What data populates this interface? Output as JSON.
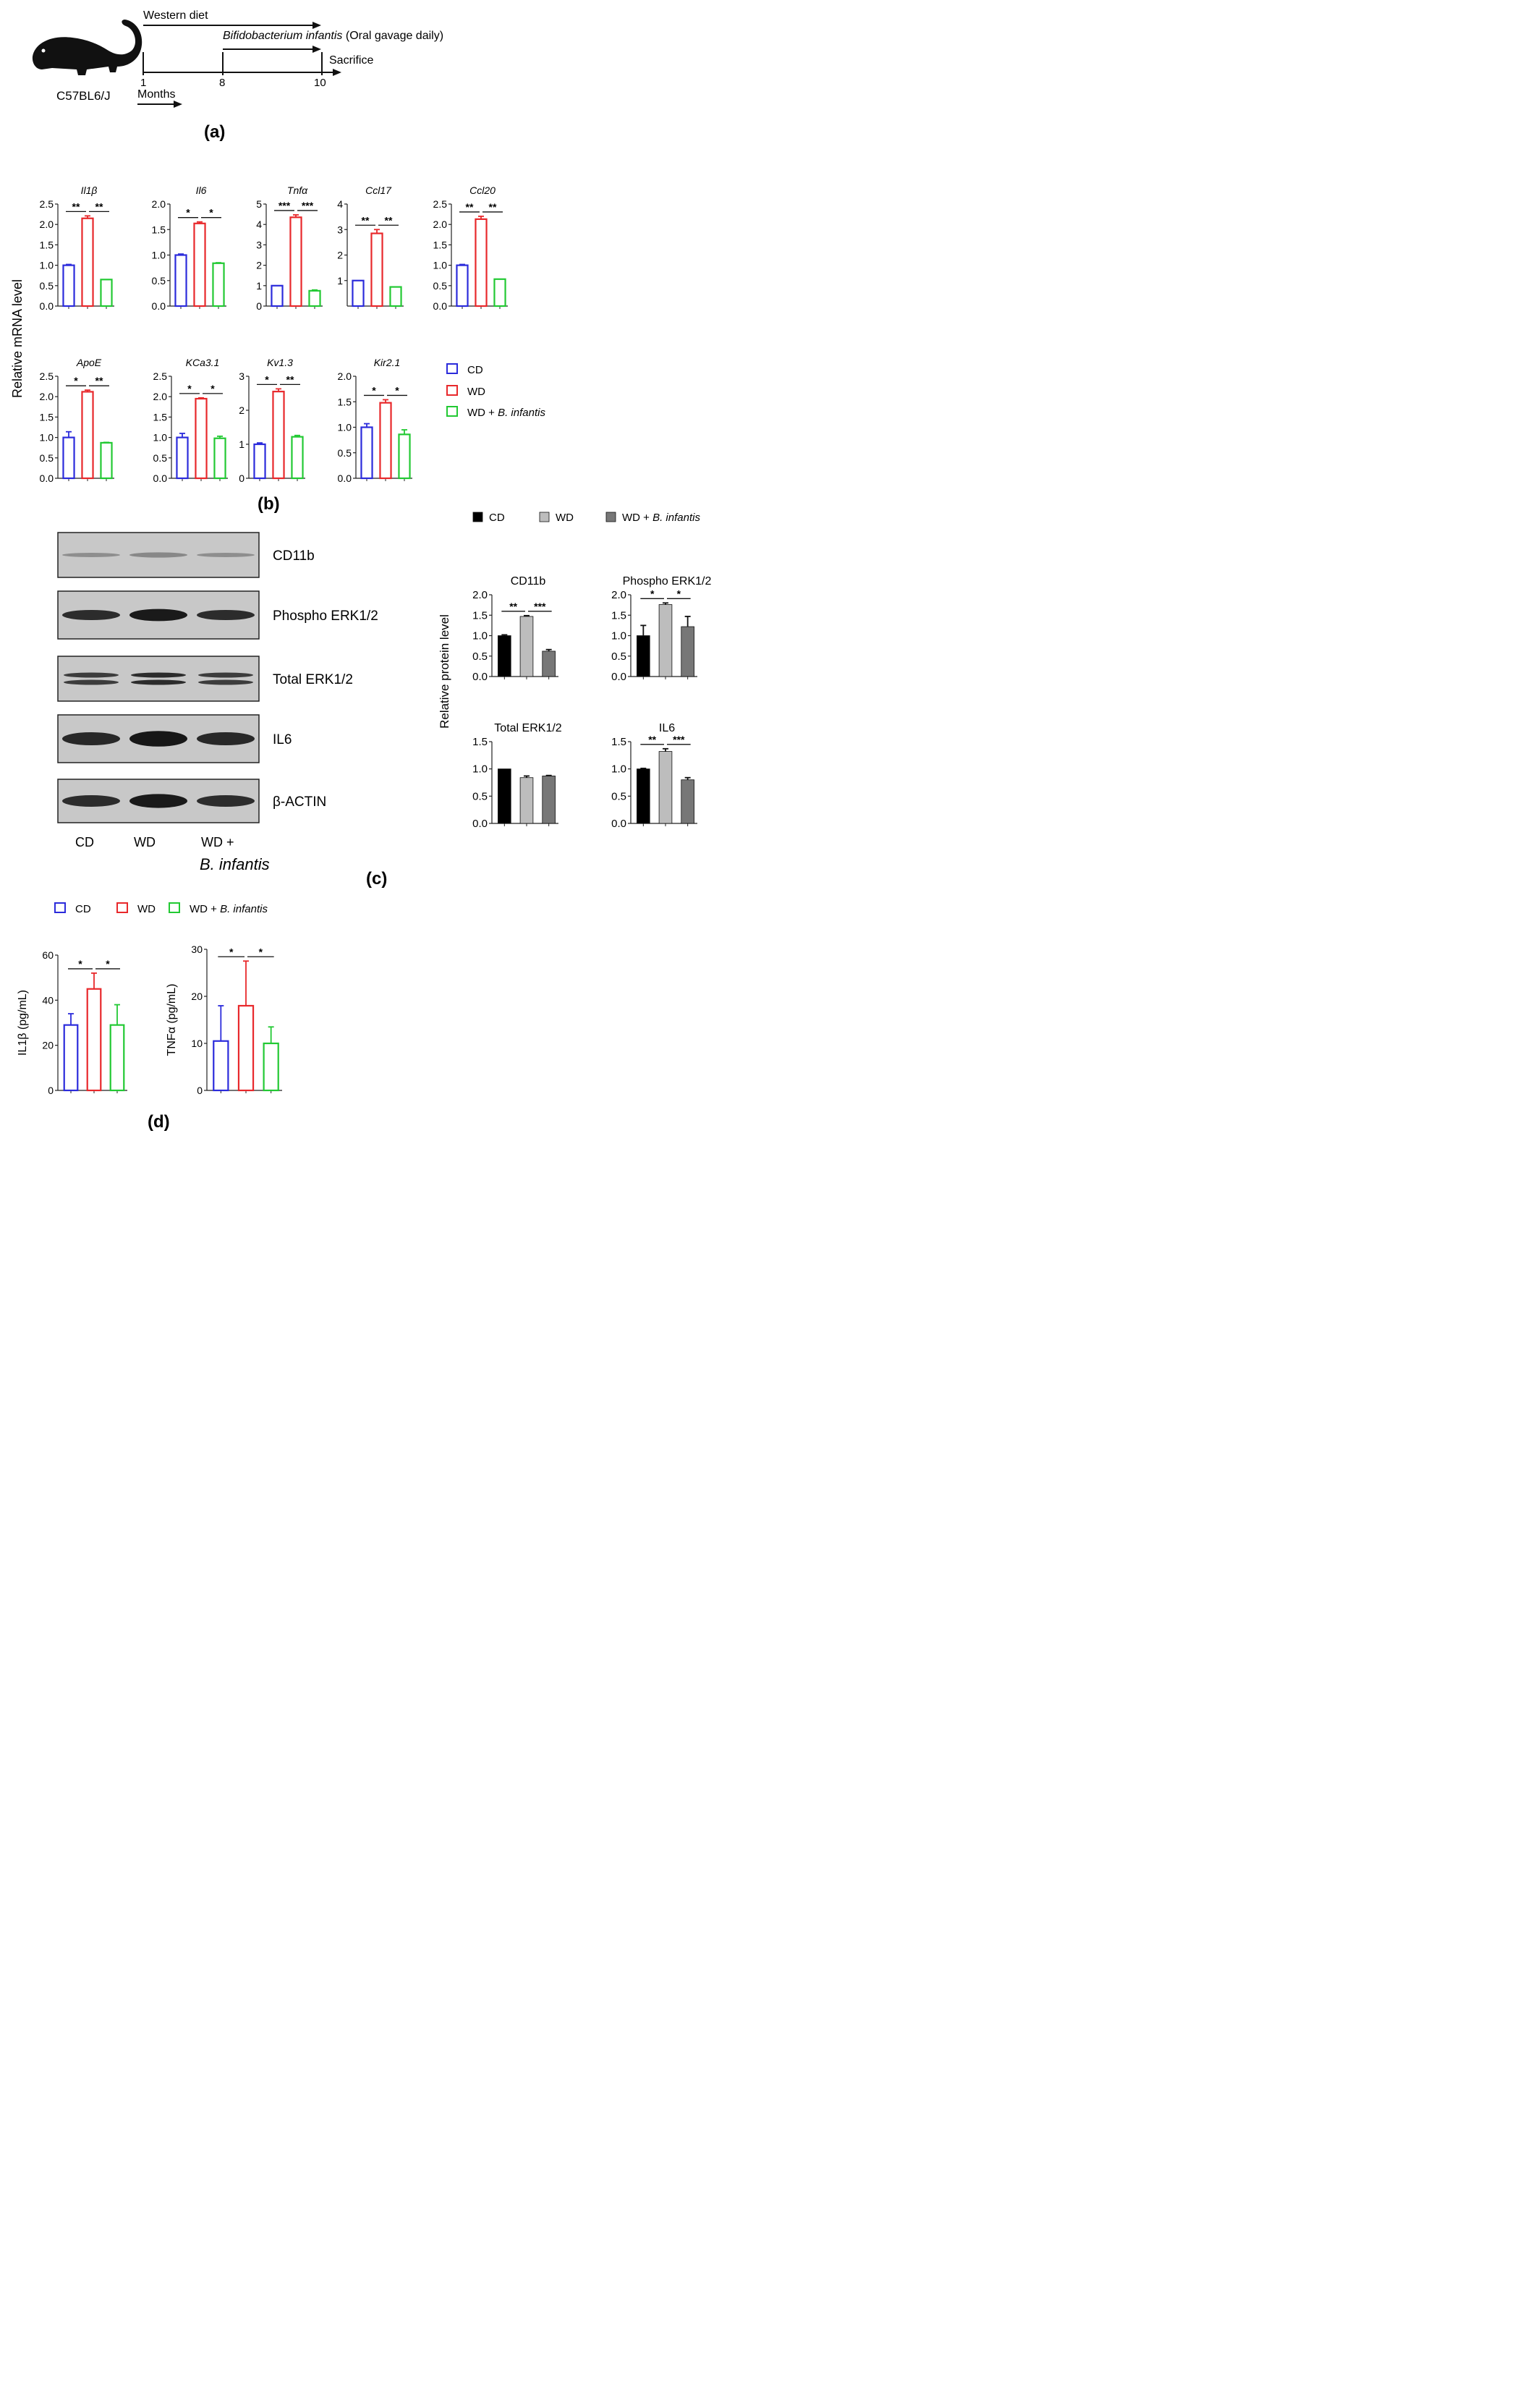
{
  "panel_labels": {
    "a": "(a)",
    "b": "(b)",
    "c": "(c)",
    "d": "(d)"
  },
  "colors": {
    "cd": "#2b2bdb",
    "wd": "#e8282b",
    "binf": "#22c933",
    "prot_cd": "#000000",
    "prot_wd": "#bdbdbd",
    "prot_binf": "#777777",
    "axis": "#222222",
    "blot_bg": "#c8c8c8",
    "band": "#111111"
  },
  "timeline": {
    "mouse_label": "C57BL6/J",
    "western_diet": "Western diet",
    "binf_name": "Bifidobacterium infantis",
    "binf_suffix": " (Oral gavage daily)",
    "sacrifice": "Sacrifice",
    "months": "Months",
    "ticks": [
      "1",
      "8",
      "10"
    ]
  },
  "mrna": {
    "ylabel": "Relative mRNA level",
    "legend": [
      {
        "label": "CD",
        "italic": ""
      },
      {
        "label": "WD",
        "italic": ""
      },
      {
        "label": "WD + ",
        "italic": "B. infantis"
      }
    ]
  },
  "protein": {
    "ylabel": "Relative protein level",
    "legend": [
      {
        "label": "CD",
        "italic": ""
      },
      {
        "label": "WD",
        "italic": ""
      },
      {
        "label": "WD + ",
        "italic": "B. infantis"
      }
    ]
  },
  "blot": {
    "rows": [
      "CD11b",
      "Phospho ERK1/2",
      "Total ERK1/2",
      "IL6",
      "β-ACTIN"
    ],
    "lanes": [
      "CD",
      "WD",
      "WD +"
    ],
    "lane3_italic": "B. infantis"
  },
  "elisa": {
    "legend": [
      {
        "label": "CD",
        "italic": ""
      },
      {
        "label": "WD",
        "italic": ""
      },
      {
        "label": "WD + ",
        "italic": "B. infantis"
      }
    ]
  },
  "chart_data": [
    {
      "type": "bar",
      "panel": "b",
      "title": "Il1β",
      "categories": [
        "CD",
        "WD",
        "WD + B. infantis"
      ],
      "values": [
        1.0,
        2.15,
        0.65
      ],
      "errors": [
        0.02,
        0.06,
        0.0
      ],
      "ylim": [
        0,
        2.5
      ],
      "yticks": [
        "0.0",
        "0.5",
        "1.0",
        "1.5",
        "2.0",
        "2.5"
      ],
      "sig": [
        {
          "pair": [
            0,
            1
          ],
          "label": "**"
        },
        {
          "pair": [
            1,
            2
          ],
          "label": "**"
        }
      ]
    },
    {
      "type": "bar",
      "panel": "b",
      "title": "Il6",
      "categories": [
        "CD",
        "WD",
        "WD + B. infantis"
      ],
      "values": [
        1.0,
        1.62,
        0.84
      ],
      "errors": [
        0.02,
        0.03,
        0.01
      ],
      "ylim": [
        0,
        2.0
      ],
      "yticks": [
        "0.0",
        "0.5",
        "1.0",
        "1.5",
        "2.0"
      ],
      "sig": [
        {
          "pair": [
            0,
            1
          ],
          "label": "*"
        },
        {
          "pair": [
            1,
            2
          ],
          "label": "*"
        }
      ]
    },
    {
      "type": "bar",
      "panel": "b",
      "title": "Tnfα",
      "categories": [
        "CD",
        "WD",
        "WD + B. infantis"
      ],
      "values": [
        1.0,
        4.35,
        0.75
      ],
      "errors": [
        0.0,
        0.12,
        0.04
      ],
      "ylim": [
        0,
        5
      ],
      "yticks": [
        "0",
        "1",
        "2",
        "3",
        "4",
        "5"
      ],
      "sig": [
        {
          "pair": [
            0,
            1
          ],
          "label": "***"
        },
        {
          "pair": [
            1,
            2
          ],
          "label": "***"
        }
      ]
    },
    {
      "type": "bar",
      "panel": "b",
      "title": "Ccl17",
      "categories": [
        "CD",
        "WD",
        "WD + B. infantis"
      ],
      "values": [
        1.0,
        2.85,
        0.75
      ],
      "errors": [
        0.0,
        0.15,
        0.0
      ],
      "ylim": [
        0,
        4
      ],
      "yticks": [
        "1",
        "2",
        "3",
        "4"
      ],
      "sig": [
        {
          "pair": [
            0,
            1
          ],
          "label": "**"
        },
        {
          "pair": [
            1,
            2
          ],
          "label": "**"
        }
      ]
    },
    {
      "type": "bar",
      "panel": "b",
      "title": "Ccl20",
      "categories": [
        "CD",
        "WD",
        "WD + B. infantis"
      ],
      "values": [
        1.0,
        2.13,
        0.66
      ],
      "errors": [
        0.02,
        0.07,
        0.0
      ],
      "ylim": [
        0,
        2.5
      ],
      "yticks": [
        "0.0",
        "0.5",
        "1.0",
        "1.5",
        "2.0",
        "2.5"
      ],
      "sig": [
        {
          "pair": [
            0,
            1
          ],
          "label": "**"
        },
        {
          "pair": [
            1,
            2
          ],
          "label": "**"
        }
      ]
    },
    {
      "type": "bar",
      "panel": "b",
      "title": "ApoE",
      "categories": [
        "CD",
        "WD",
        "WD + B. infantis"
      ],
      "values": [
        1.0,
        2.12,
        0.87
      ],
      "errors": [
        0.14,
        0.04,
        0.01
      ],
      "ylim": [
        0,
        2.5
      ],
      "yticks": [
        "0.0",
        "0.5",
        "1.0",
        "1.5",
        "2.0",
        "2.5"
      ],
      "sig": [
        {
          "pair": [
            0,
            1
          ],
          "label": "*"
        },
        {
          "pair": [
            1,
            2
          ],
          "label": "**"
        }
      ]
    },
    {
      "type": "bar",
      "panel": "b",
      "title": "KCa3.1",
      "categories": [
        "CD",
        "WD",
        "WD + B. infantis"
      ],
      "values": [
        1.0,
        1.95,
        0.98
      ],
      "errors": [
        0.1,
        0.02,
        0.05
      ],
      "ylim": [
        0,
        2.5
      ],
      "yticks": [
        "0.0",
        "0.5",
        "1.0",
        "1.5",
        "2.0",
        "2.5"
      ],
      "sig": [
        {
          "pair": [
            0,
            1
          ],
          "label": "*"
        },
        {
          "pair": [
            1,
            2
          ],
          "label": "*"
        }
      ]
    },
    {
      "type": "bar",
      "panel": "b",
      "title": "Kv1.3",
      "categories": [
        "CD",
        "WD",
        "WD + B. infantis"
      ],
      "values": [
        1.0,
        2.55,
        1.22
      ],
      "errors": [
        0.04,
        0.08,
        0.04
      ],
      "ylim": [
        0,
        3
      ],
      "yticks": [
        "0",
        "1",
        "2",
        "3"
      ],
      "sig": [
        {
          "pair": [
            0,
            1
          ],
          "label": "*"
        },
        {
          "pair": [
            1,
            2
          ],
          "label": "**"
        }
      ]
    },
    {
      "type": "bar",
      "panel": "b",
      "title": "Kir2.1",
      "categories": [
        "CD",
        "WD",
        "WD + B. infantis"
      ],
      "values": [
        1.0,
        1.48,
        0.86
      ],
      "errors": [
        0.07,
        0.06,
        0.09
      ],
      "ylim": [
        0,
        2.0
      ],
      "yticks": [
        "0.0",
        "0.5",
        "1.0",
        "1.5",
        "2.0"
      ],
      "sig": [
        {
          "pair": [
            0,
            1
          ],
          "label": "*"
        },
        {
          "pair": [
            1,
            2
          ],
          "label": "*"
        }
      ]
    },
    {
      "type": "bar",
      "panel": "c",
      "title": "CD11b",
      "categories": [
        "CD",
        "WD",
        "WD + B. infantis"
      ],
      "values": [
        1.0,
        1.47,
        0.62
      ],
      "errors": [
        0.02,
        0.02,
        0.04
      ],
      "ylim": [
        0,
        2.0
      ],
      "yticks": [
        "0.0",
        "0.5",
        "1.0",
        "1.5",
        "2.0"
      ],
      "sig": [
        {
          "pair": [
            0,
            1
          ],
          "label": "**"
        },
        {
          "pair": [
            1,
            2
          ],
          "label": "***"
        }
      ]
    },
    {
      "type": "bar",
      "panel": "c",
      "title": "Phospho ERK1/2",
      "categories": [
        "CD",
        "WD",
        "WD + B. infantis"
      ],
      "values": [
        1.0,
        1.76,
        1.22
      ],
      "errors": [
        0.25,
        0.04,
        0.25
      ],
      "ylim": [
        0,
        2.0
      ],
      "yticks": [
        "0.0",
        "0.5",
        "1.0",
        "1.5",
        "2.0"
      ],
      "sig": [
        {
          "pair": [
            0,
            1
          ],
          "label": "*"
        },
        {
          "pair": [
            1,
            2
          ],
          "label": "*"
        }
      ]
    },
    {
      "type": "bar",
      "panel": "c",
      "title": "Total ERK1/2",
      "categories": [
        "CD",
        "WD",
        "WD + B. infantis"
      ],
      "values": [
        1.0,
        0.84,
        0.87
      ],
      "errors": [
        0.0,
        0.03,
        0.01
      ],
      "ylim": [
        0,
        1.5
      ],
      "yticks": [
        "0.0",
        "0.5",
        "1.0",
        "1.5"
      ],
      "sig": []
    },
    {
      "type": "bar",
      "panel": "c",
      "title": "IL6",
      "categories": [
        "CD",
        "WD",
        "WD + B. infantis"
      ],
      "values": [
        1.0,
        1.32,
        0.8
      ],
      "errors": [
        0.01,
        0.05,
        0.04
      ],
      "ylim": [
        0,
        1.5
      ],
      "yticks": [
        "0.0",
        "0.5",
        "1.0",
        "1.5"
      ],
      "sig": [
        {
          "pair": [
            0,
            1
          ],
          "label": "**"
        },
        {
          "pair": [
            1,
            2
          ],
          "label": "***"
        }
      ]
    },
    {
      "type": "bar",
      "panel": "d",
      "title": "",
      "ylabel": "IL1β (pg/mL)",
      "categories": [
        "CD",
        "WD",
        "WD + B. infantis"
      ],
      "values": [
        29,
        45,
        29
      ],
      "errors": [
        5,
        7,
        9
      ],
      "ylim": [
        0,
        60
      ],
      "yticks": [
        "0",
        "20",
        "40",
        "60"
      ],
      "sig": [
        {
          "pair": [
            0,
            1
          ],
          "label": "*"
        },
        {
          "pair": [
            1,
            2
          ],
          "label": "*"
        }
      ]
    },
    {
      "type": "bar",
      "panel": "d",
      "title": "",
      "ylabel": "TNFα (pg/mL)",
      "categories": [
        "CD",
        "WD",
        "WD + B. infantis"
      ],
      "values": [
        10.5,
        18,
        10
      ],
      "errors": [
        7.5,
        9.5,
        3.5
      ],
      "ylim": [
        0,
        30
      ],
      "yticks": [
        "0",
        "10",
        "20",
        "30"
      ],
      "tick_labels_shown": [
        "0",
        "10",
        "20",
        "30"
      ],
      "sig": [
        {
          "pair": [
            0,
            1
          ],
          "label": "*"
        },
        {
          "pair": [
            1,
            2
          ],
          "label": "*"
        }
      ]
    }
  ]
}
